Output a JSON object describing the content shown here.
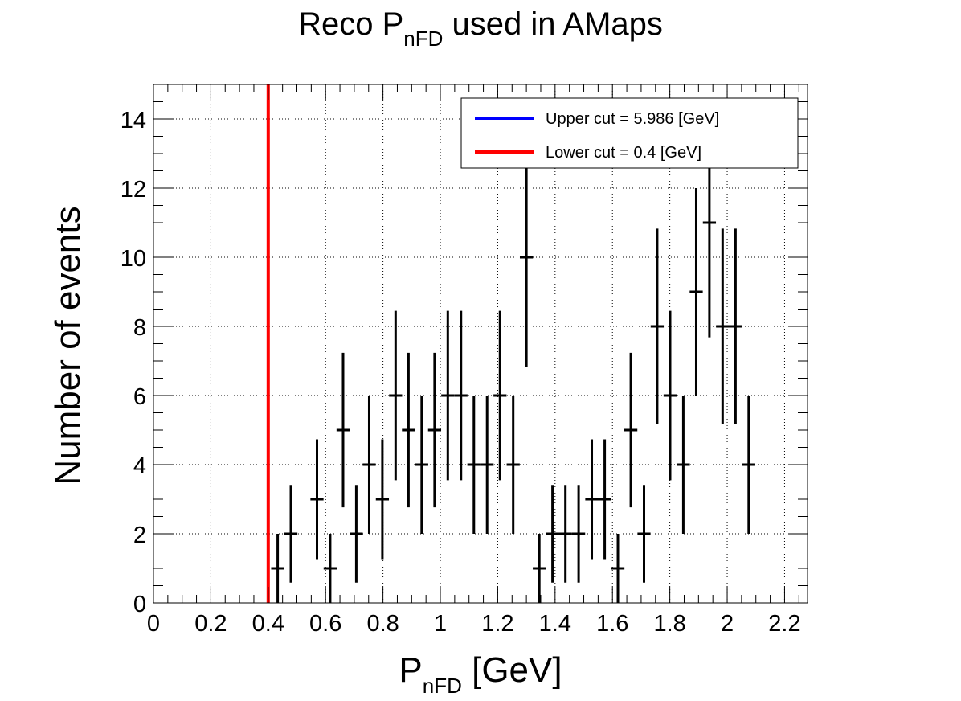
{
  "chart_data": {
    "type": "scatter",
    "title": {
      "main": "Reco P",
      "sub": "nFD",
      "rest": " used in AMaps"
    },
    "xlabel": {
      "main": "P",
      "sub": "nFD",
      "rest": " [GeV]"
    },
    "ylabel": "Number of events",
    "xlim": [
      0,
      2.28
    ],
    "ylim": [
      0,
      15
    ],
    "x_ticks": [
      "0",
      "0.2",
      "0.4",
      "0.6",
      "0.8",
      "1",
      "1.2",
      "1.4",
      "1.6",
      "1.8",
      "2",
      "2.2"
    ],
    "y_ticks": [
      "0",
      "2",
      "4",
      "6",
      "8",
      "10",
      "12",
      "14"
    ],
    "grid": true,
    "bin_width": 0.0456,
    "series": [
      {
        "style": "histogram-error-bars",
        "color": "#000000",
        "x": [
          0.433,
          0.479,
          0.57,
          0.616,
          0.661,
          0.707,
          0.752,
          0.798,
          0.844,
          0.889,
          0.935,
          0.98,
          1.026,
          1.072,
          1.117,
          1.163,
          1.208,
          1.254,
          1.3,
          1.345,
          1.391,
          1.436,
          1.482,
          1.528,
          1.573,
          1.619,
          1.664,
          1.71,
          1.756,
          1.801,
          1.847,
          1.892,
          1.938,
          1.984,
          2.029,
          2.075
        ],
        "y": [
          1,
          2,
          3,
          1,
          5,
          2,
          4,
          3,
          6,
          5,
          4,
          5,
          6,
          6,
          4,
          4,
          6,
          4,
          10,
          1,
          2,
          2,
          2,
          3,
          3,
          1,
          5,
          2,
          8,
          6,
          4,
          9,
          11,
          8,
          8,
          4
        ]
      }
    ],
    "cut_lines": [
      {
        "name": "Upper cut = 5.986 [GeV]",
        "x": 5.986,
        "color": "#0000ff"
      },
      {
        "name": "Lower cut = 0.4 [GeV]",
        "x": 0.4,
        "color": "#ff0000"
      }
    ],
    "legend_position": "top-right"
  }
}
